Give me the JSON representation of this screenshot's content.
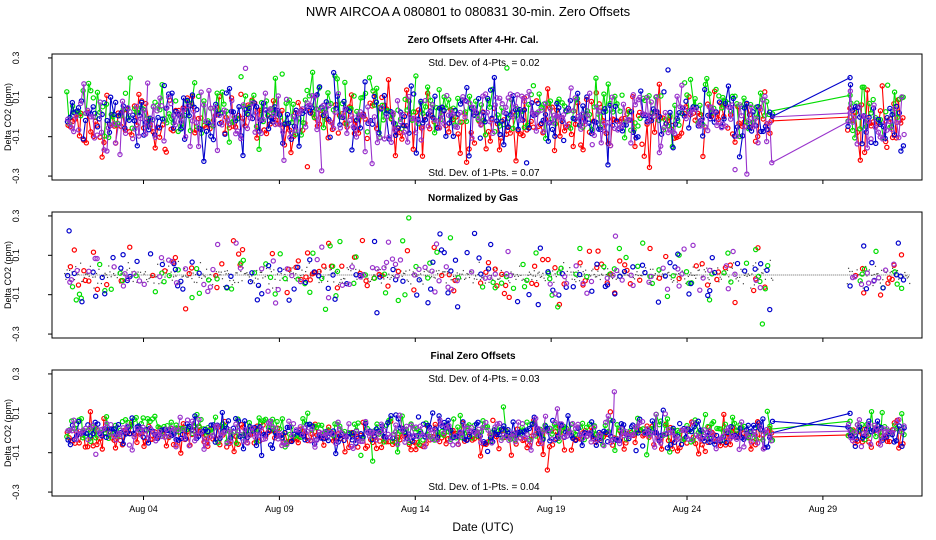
{
  "chart_data": {
    "type": "scatter",
    "title": "NWR   AIRCOA A   080801 to 080831   30-min. Zero Offsets",
    "xlabel": "Date (UTC)",
    "x_range": [
      0,
      31.5
    ],
    "x_ticks": [
      {
        "label": "Aug 04",
        "day": 3
      },
      {
        "label": "Aug 09",
        "day": 8
      },
      {
        "label": "Aug 14",
        "day": 13
      },
      {
        "label": "Aug 19",
        "day": 18
      },
      {
        "label": "Aug 24",
        "day": 23
      },
      {
        "label": "Aug 29",
        "day": 28
      }
    ],
    "y_ticks": [
      "0.3",
      "0.1",
      "-0.1",
      "-0.3"
    ],
    "series_colors": {
      "red": "#ff0000",
      "green": "#00dd00",
      "blue": "#0000cc",
      "purple": "#9933cc",
      "black": "#000000"
    },
    "data_gap": {
      "start": 26.2,
      "end": 28.9
    },
    "panels": [
      {
        "title": "Zero Offsets After 4-Hr. Cal.",
        "ylabel": "Delta CO2 (ppm)",
        "ylim": [
          -0.32,
          0.32
        ],
        "top_note": "Std. Dev. of 4-Pts. = 0.02",
        "bottom_note": "Std. Dev. of 1-Pts. = 0.07",
        "style": "raw",
        "spread": 0.07,
        "means": {
          "red": -0.02,
          "green": 0.03,
          "blue": 0.0,
          "purple": 0.0
        },
        "connectors": true
      },
      {
        "title": "Normalized by Gas",
        "ylabel": "Delta CO2 (ppm)",
        "ylim": [
          -0.32,
          0.32
        ],
        "top_note": "",
        "bottom_note": "",
        "style": "normalized",
        "spread": 0.07,
        "means": {
          "red": 0.0,
          "green": 0.0,
          "blue": 0.0,
          "purple": 0.0
        },
        "connectors": false
      },
      {
        "title": "Final Zero Offsets",
        "ylabel": "Delta CO2 (ppm)",
        "ylim": [
          -0.32,
          0.32
        ],
        "top_note": "Std. Dev. of 4-Pts. = 0.03",
        "bottom_note": "Std. Dev. of 1-Pts. = 0.04",
        "style": "raw",
        "spread": 0.035,
        "means": {
          "red": -0.02,
          "green": 0.02,
          "blue": 0.0,
          "purple": 0.0
        },
        "connectors": true
      }
    ]
  }
}
